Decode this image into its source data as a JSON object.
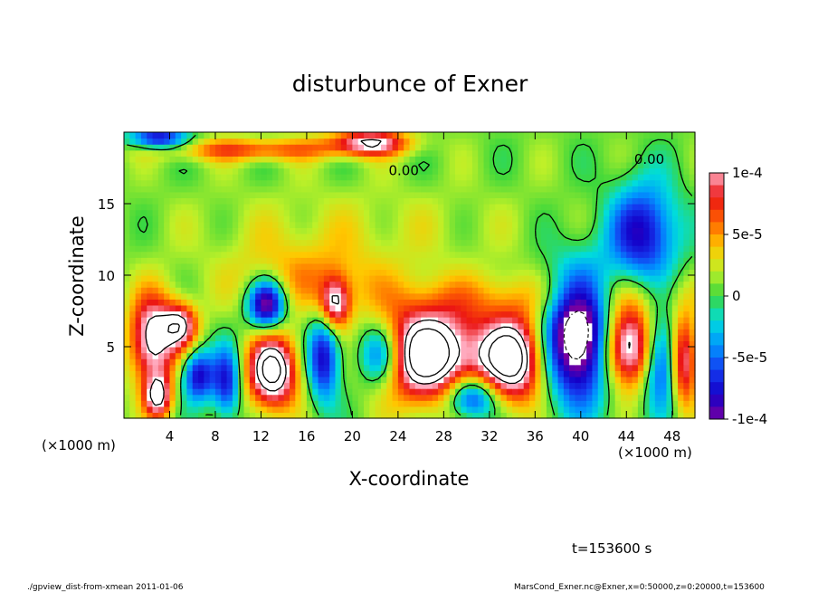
{
  "chart_data": {
    "type": "heatmap",
    "title": "disturbunce of Exner",
    "xlabel": "X-coordinate",
    "ylabel": "Z-coordinate",
    "x_unit": "(×1000 m)",
    "x_unit_right": "(×1000 m)",
    "xlim": [
      0,
      50
    ],
    "ylim": [
      0,
      20
    ],
    "x_ticks": [
      4,
      8,
      12,
      16,
      20,
      24,
      28,
      32,
      36,
      40,
      44,
      48
    ],
    "y_ticks": [
      5,
      10,
      15
    ],
    "colorbar": {
      "min": -0.0001,
      "max": 0.0001,
      "tick_labels": [
        "1e-4",
        "5e-5",
        "0",
        "-5e-5",
        "-1e-4"
      ],
      "tick_values": [
        0.0001,
        5e-05,
        0,
        -5e-05,
        -0.0001
      ]
    },
    "contour_labels": [
      "0.00",
      "0.00"
    ],
    "time_label": "t=153600 s",
    "footer_left": "./gpview_dist-from-xmean  2011-01-06",
    "footer_right": "MarsCond_Exner.nc@Exner,x=0:50000,z=0:20000,t=153600",
    "blobs": [
      {
        "x": 2.5,
        "z": 5.5,
        "rx": 2.0,
        "rz": 3.2,
        "v": 1.2
      },
      {
        "x": 5.0,
        "z": 6.5,
        "rx": 1.5,
        "rz": 1.6,
        "v": 1.0
      },
      {
        "x": 3.0,
        "z": 1.5,
        "rx": 1.2,
        "rz": 1.5,
        "v": 1.0
      },
      {
        "x": 6.5,
        "z": 3.0,
        "rx": 1.4,
        "rz": 1.8,
        "v": -0.9
      },
      {
        "x": 9.0,
        "z": 2.5,
        "rx": 1.2,
        "rz": 2.5,
        "v": -0.8
      },
      {
        "x": 13.0,
        "z": 3.3,
        "rx": 2.2,
        "rz": 2.6,
        "v": 1.4
      },
      {
        "x": 12.5,
        "z": 8.0,
        "rx": 1.6,
        "rz": 1.7,
        "v": -1.2
      },
      {
        "x": 17.5,
        "z": 4.2,
        "rx": 1.4,
        "rz": 3.0,
        "v": -0.9
      },
      {
        "x": 18.5,
        "z": 8.0,
        "rx": 1.3,
        "rz": 1.8,
        "v": 1.0
      },
      {
        "x": 22.5,
        "z": 4.5,
        "rx": 2.0,
        "rz": 2.2,
        "v": -0.9
      },
      {
        "x": 26.5,
        "z": 4.5,
        "rx": 4.2,
        "rz": 3.2,
        "v": 1.6
      },
      {
        "x": 30.5,
        "z": 1.5,
        "rx": 2.2,
        "rz": 1.5,
        "v": -1.0
      },
      {
        "x": 34.0,
        "z": 4.2,
        "rx": 3.0,
        "rz": 3.0,
        "v": 1.5
      },
      {
        "x": 39.8,
        "z": 5.8,
        "rx": 3.2,
        "rz": 4.4,
        "v": -1.6
      },
      {
        "x": 44.0,
        "z": 5.0,
        "rx": 2.4,
        "rz": 2.8,
        "v": 1.4
      },
      {
        "x": 47.0,
        "z": 4.0,
        "rx": 1.6,
        "rz": 3.2,
        "v": -0.9
      },
      {
        "x": 49.0,
        "z": 4.0,
        "rx": 1.2,
        "rz": 3.2,
        "v": 1.0
      },
      {
        "x": 45.5,
        "z": 13.0,
        "rx": 3.0,
        "rz": 3.5,
        "v": -0.9
      },
      {
        "x": 21.5,
        "z": 19.3,
        "rx": 3.5,
        "rz": 0.9,
        "v": 1.0
      },
      {
        "x": 11.0,
        "z": 18.8,
        "rx": 8.0,
        "rz": 0.8,
        "v": 0.6
      },
      {
        "x": 3.0,
        "z": 19.6,
        "rx": 2.5,
        "rz": 0.8,
        "v": -0.9
      },
      {
        "x": 16.0,
        "z": 10.0,
        "rx": 7.0,
        "rz": 2.5,
        "v": 0.35
      },
      {
        "x": 36.0,
        "z": 8.5,
        "rx": 14.0,
        "rz": 2.0,
        "v": 0.3
      },
      {
        "x": 20.0,
        "z": 13.5,
        "rx": 14.0,
        "rz": 3.0,
        "v": 0.15
      }
    ]
  }
}
